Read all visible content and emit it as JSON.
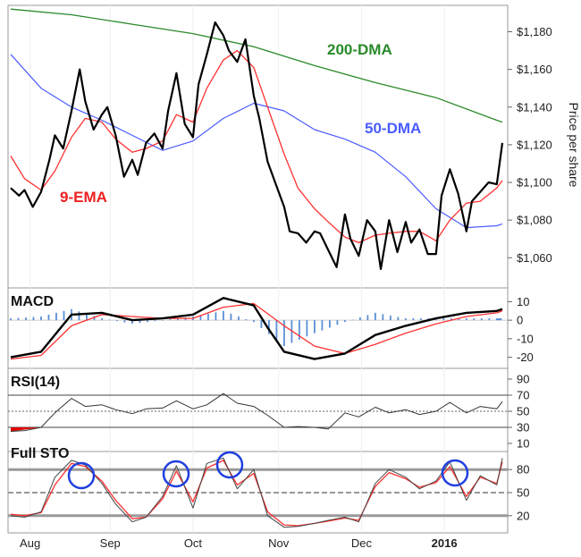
{
  "colors": {
    "price": "#000000",
    "ema9": "#ff3030",
    "dma50": "#4a5cff",
    "dma200": "#2a8a2a",
    "macd_hist": "#5b8fd6",
    "rsi_fill": "#e00000",
    "circle": "#1f3fe0"
  },
  "chart_data": [
    {
      "type": "line",
      "ylabel": "Price per share",
      "ylim": [
        1044,
        1194
      ],
      "yticks": [
        "$1,060",
        "$1,080",
        "$1,100",
        "$1,120",
        "$1,140",
        "$1,160",
        "$1,180"
      ],
      "ytick_values": [
        1060,
        1080,
        1100,
        1120,
        1140,
        1160,
        1180
      ],
      "annotations": [
        "200-DMA",
        "50-DMA",
        "9-EMA"
      ],
      "series": [
        {
          "name": "price",
          "x": [
            0,
            3,
            5,
            8,
            11,
            14,
            16,
            19,
            22,
            25,
            27,
            30,
            33,
            35,
            38,
            41,
            44,
            46,
            49,
            52,
            55,
            57,
            60,
            63,
            66,
            68,
            71,
            74,
            77,
            79,
            82,
            85,
            88,
            90,
            93,
            96,
            99,
            101,
            104,
            107,
            110,
            112,
            115,
            118,
            121,
            123,
            126,
            129,
            132,
            134,
            137,
            140,
            143,
            145,
            148,
            151,
            154,
            156,
            159,
            162,
            165,
            167,
            170,
            173,
            176,
            178
          ],
          "values": [
            1097,
            1093,
            1096,
            1087,
            1095,
            1112,
            1125,
            1118,
            1138,
            1160,
            1143,
            1128,
            1136,
            1140,
            1125,
            1103,
            1112,
            1104,
            1121,
            1126,
            1118,
            1138,
            1158,
            1131,
            1124,
            1152,
            1168,
            1185,
            1178,
            1170,
            1164,
            1176,
            1146,
            1134,
            1111,
            1099,
            1087,
            1074,
            1073,
            1068,
            1074,
            1073,
            1064,
            1055,
            1083,
            1070,
            1061,
            1080,
            1074,
            1054,
            1080,
            1063,
            1079,
            1068,
            1075,
            1062,
            1062,
            1093,
            1107,
            1094,
            1074,
            1090,
            1095,
            1100,
            1099,
            1121
          ]
        },
        {
          "name": "9-EMA",
          "x": [
            0,
            5,
            11,
            16,
            22,
            27,
            33,
            38,
            44,
            49,
            55,
            60,
            66,
            71,
            77,
            82,
            88,
            93,
            99,
            104,
            110,
            115,
            121,
            126,
            132,
            137,
            143,
            148,
            154,
            159,
            165,
            170,
            176,
            178
          ],
          "values": [
            1114,
            1102,
            1096,
            1106,
            1124,
            1134,
            1132,
            1123,
            1116,
            1118,
            1122,
            1136,
            1132,
            1150,
            1165,
            1170,
            1161,
            1140,
            1115,
            1097,
            1086,
            1079,
            1071,
            1068,
            1072,
            1073,
            1074,
            1074,
            1069,
            1080,
            1089,
            1090,
            1097,
            1101
          ]
        },
        {
          "name": "50-DMA",
          "x": [
            0,
            11,
            22,
            33,
            44,
            55,
            66,
            77,
            88,
            99,
            110,
            121,
            132,
            143,
            154,
            165,
            176,
            178
          ],
          "values": [
            1168,
            1150,
            1140,
            1133,
            1125,
            1117,
            1122,
            1134,
            1142,
            1138,
            1128,
            1123,
            1116,
            1103,
            1086,
            1076,
            1077,
            1078
          ]
        },
        {
          "name": "200-DMA",
          "x": [
            0,
            22,
            44,
            66,
            88,
            110,
            132,
            154,
            176,
            178
          ],
          "values": [
            1192,
            1189,
            1184,
            1179,
            1172,
            1162,
            1153,
            1145,
            1133,
            1132
          ]
        }
      ]
    },
    {
      "type": "line",
      "title": "MACD",
      "ylim": [
        -26,
        16
      ],
      "yticks": [
        "10",
        "0",
        "-10",
        "-20"
      ],
      "ytick_values": [
        10,
        0,
        -10,
        -20
      ],
      "series": [
        {
          "name": "macd",
          "x": [
            0,
            11,
            22,
            33,
            44,
            55,
            66,
            77,
            88,
            93,
            99,
            110,
            121,
            132,
            143,
            154,
            165,
            176,
            178
          ],
          "values": [
            -20,
            -17,
            3,
            4,
            0,
            1,
            3,
            12,
            8,
            -4,
            -17,
            -21,
            -18,
            -8,
            -3,
            1,
            4,
            5,
            6
          ]
        },
        {
          "name": "signal",
          "x": [
            0,
            11,
            22,
            33,
            44,
            55,
            66,
            77,
            88,
            99,
            110,
            121,
            132,
            143,
            154,
            165,
            176,
            178
          ],
          "values": [
            -21,
            -19,
            -3,
            3,
            2,
            1,
            1,
            7,
            9,
            -3,
            -14,
            -18,
            -13,
            -7,
            -2,
            2,
            4,
            5
          ]
        },
        {
          "name": "histogram",
          "x": [
            0,
            11,
            22,
            33,
            44,
            55,
            66,
            77,
            88,
            99,
            110,
            121,
            132,
            143,
            154,
            165,
            176,
            178
          ],
          "values": [
            1,
            2,
            6,
            1,
            -2,
            0,
            2,
            5,
            -1,
            -14,
            -7,
            -1,
            4,
            1,
            1,
            1,
            1,
            1
          ]
        }
      ]
    },
    {
      "type": "line",
      "title": "RSI(14)",
      "ylim": [
        0,
        100
      ],
      "yticks": [
        "90",
        "70",
        "50",
        "30",
        "10"
      ],
      "ytick_values": [
        90,
        70,
        50,
        30,
        10
      ],
      "series": [
        {
          "name": "rsi",
          "x": [
            0,
            5,
            11,
            16,
            22,
            27,
            33,
            38,
            44,
            49,
            55,
            60,
            66,
            71,
            77,
            82,
            88,
            93,
            99,
            104,
            110,
            115,
            121,
            126,
            132,
            137,
            143,
            148,
            154,
            159,
            165,
            170,
            176,
            178
          ],
          "values": [
            25,
            26,
            30,
            48,
            66,
            56,
            58,
            52,
            47,
            53,
            54,
            63,
            53,
            58,
            72,
            60,
            56,
            45,
            30,
            31,
            30,
            28,
            48,
            43,
            55,
            48,
            52,
            46,
            50,
            61,
            48,
            56,
            53,
            62
          ]
        }
      ]
    },
    {
      "type": "line",
      "title": "Full STO",
      "ylim": [
        0,
        100
      ],
      "yticks": [
        "80",
        "50",
        "20"
      ],
      "ytick_values": [
        80,
        50,
        20
      ],
      "xticks": [
        "Aug",
        "Sep",
        "Oct",
        "Nov",
        "Dec",
        "2016"
      ],
      "xtick_values": [
        7,
        36,
        66,
        97,
        127,
        157
      ],
      "series": [
        {
          "name": "%K",
          "x": [
            0,
            5,
            11,
            16,
            22,
            27,
            33,
            38,
            44,
            49,
            55,
            60,
            66,
            71,
            77,
            82,
            88,
            93,
            99,
            104,
            110,
            115,
            121,
            126,
            132,
            137,
            143,
            148,
            154,
            159,
            165,
            170,
            176,
            178
          ],
          "values": [
            20,
            18,
            25,
            70,
            92,
            86,
            62,
            35,
            12,
            18,
            45,
            85,
            30,
            88,
            95,
            55,
            80,
            20,
            5,
            6,
            10,
            14,
            18,
            12,
            62,
            80,
            70,
            55,
            65,
            90,
            40,
            72,
            60,
            95
          ]
        },
        {
          "name": "%D",
          "x": [
            0,
            5,
            11,
            16,
            22,
            27,
            33,
            38,
            44,
            49,
            55,
            60,
            66,
            71,
            77,
            82,
            88,
            93,
            99,
            104,
            110,
            115,
            121,
            126,
            132,
            137,
            143,
            148,
            154,
            159,
            165,
            170,
            176,
            178
          ],
          "values": [
            22,
            20,
            24,
            60,
            88,
            84,
            65,
            40,
            16,
            18,
            42,
            78,
            38,
            82,
            92,
            60,
            75,
            25,
            8,
            7,
            10,
            13,
            17,
            14,
            58,
            76,
            68,
            57,
            63,
            84,
            45,
            70,
            62,
            90
          ]
        }
      ]
    }
  ]
}
